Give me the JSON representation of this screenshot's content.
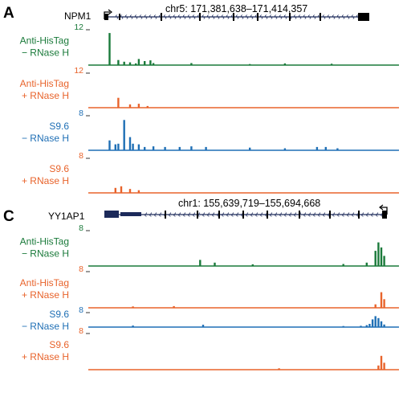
{
  "colors": {
    "green": "#1a7a3a",
    "orange": "#e8632b",
    "blue": "#1f6fb5",
    "navy": "#1c2a5a"
  },
  "panels": [
    {
      "letter": "A",
      "gene": {
        "name": "NPM1",
        "coords": "chr5: 171,381,638–171,414,357",
        "strand": "forward"
      },
      "tracks": [
        {
          "id": "a1",
          "label1": "Anti-HisTag",
          "label2": "− RNase H",
          "scale": "12",
          "color": "green",
          "peaks": [
            [
              0.02,
              0.95
            ],
            [
              0.05,
              0.15
            ],
            [
              0.07,
              0.1
            ],
            [
              0.09,
              0.08
            ],
            [
              0.11,
              0.05
            ],
            [
              0.12,
              0.18
            ],
            [
              0.14,
              0.12
            ],
            [
              0.16,
              0.14
            ],
            [
              0.17,
              0.06
            ],
            [
              0.3,
              0.06
            ],
            [
              0.5,
              0.03
            ],
            [
              0.62,
              0.05
            ],
            [
              0.78,
              0.04
            ]
          ]
        },
        {
          "id": "a2",
          "label1": "Anti-HisTag",
          "label2": "+ RNase H",
          "scale": "12",
          "color": "orange",
          "peaks": [
            [
              0.05,
              0.3
            ],
            [
              0.09,
              0.1
            ],
            [
              0.12,
              0.12
            ],
            [
              0.15,
              0.05
            ]
          ]
        },
        {
          "id": "a3",
          "label1": "S9.6",
          "label2": "− RNase H",
          "scale": "8",
          "color": "blue",
          "peaks": [
            [
              0.02,
              0.3
            ],
            [
              0.04,
              0.18
            ],
            [
              0.05,
              0.2
            ],
            [
              0.07,
              0.92
            ],
            [
              0.09,
              0.4
            ],
            [
              0.1,
              0.2
            ],
            [
              0.12,
              0.18
            ],
            [
              0.14,
              0.1
            ],
            [
              0.17,
              0.12
            ],
            [
              0.21,
              0.1
            ],
            [
              0.26,
              0.1
            ],
            [
              0.3,
              0.12
            ],
            [
              0.35,
              0.1
            ],
            [
              0.5,
              0.08
            ],
            [
              0.62,
              0.06
            ],
            [
              0.73,
              0.1
            ],
            [
              0.76,
              0.1
            ],
            [
              0.8,
              0.06
            ]
          ]
        },
        {
          "id": "a4",
          "label1": "S9.6",
          "label2": "+ RNase H",
          "scale": "8",
          "color": "orange",
          "peaks": [
            [
              0.04,
              0.15
            ],
            [
              0.06,
              0.2
            ],
            [
              0.09,
              0.12
            ],
            [
              0.12,
              0.08
            ]
          ]
        }
      ]
    },
    {
      "letter": "C",
      "gene": {
        "name": "YY1AP1",
        "coords": "chr1: 155,639,719–155,694,668",
        "strand": "reverse"
      },
      "tracks": [
        {
          "id": "c1",
          "label1": "Anti-HisTag",
          "label2": "− RNase H",
          "scale": "8",
          "color": "green",
          "peaks": [
            [
              0.33,
              0.18
            ],
            [
              0.38,
              0.1
            ],
            [
              0.51,
              0.05
            ],
            [
              0.82,
              0.06
            ],
            [
              0.9,
              0.1
            ],
            [
              0.93,
              0.45
            ],
            [
              0.94,
              0.7
            ],
            [
              0.95,
              0.55
            ],
            [
              0.96,
              0.3
            ]
          ]
        },
        {
          "id": "c2",
          "label1": "Anti-HisTag",
          "label2": "+ RNase H",
          "scale": "8",
          "color": "orange",
          "peaks": [
            [
              0.1,
              0.04
            ],
            [
              0.24,
              0.05
            ],
            [
              0.93,
              0.1
            ],
            [
              0.95,
              0.45
            ],
            [
              0.96,
              0.25
            ]
          ]
        },
        {
          "id": "c3",
          "label1": "S9.6",
          "label2": "− RNase H",
          "scale": "8",
          "color": "blue",
          "peaks": [
            [
              0.1,
              0.12
            ],
            [
              0.34,
              0.18
            ],
            [
              0.82,
              0.08
            ],
            [
              0.88,
              0.1
            ],
            [
              0.9,
              0.15
            ],
            [
              0.91,
              0.25
            ],
            [
              0.92,
              0.6
            ],
            [
              0.93,
              0.85
            ],
            [
              0.94,
              0.7
            ],
            [
              0.95,
              0.45
            ],
            [
              0.96,
              0.2
            ]
          ]
        },
        {
          "id": "c4",
          "label1": "S9.6",
          "label2": "+ RNase H",
          "scale": "8",
          "color": "orange",
          "peaks": [
            [
              0.6,
              0.04
            ],
            [
              0.94,
              0.12
            ],
            [
              0.95,
              0.4
            ],
            [
              0.96,
              0.2
            ]
          ]
        }
      ]
    }
  ]
}
